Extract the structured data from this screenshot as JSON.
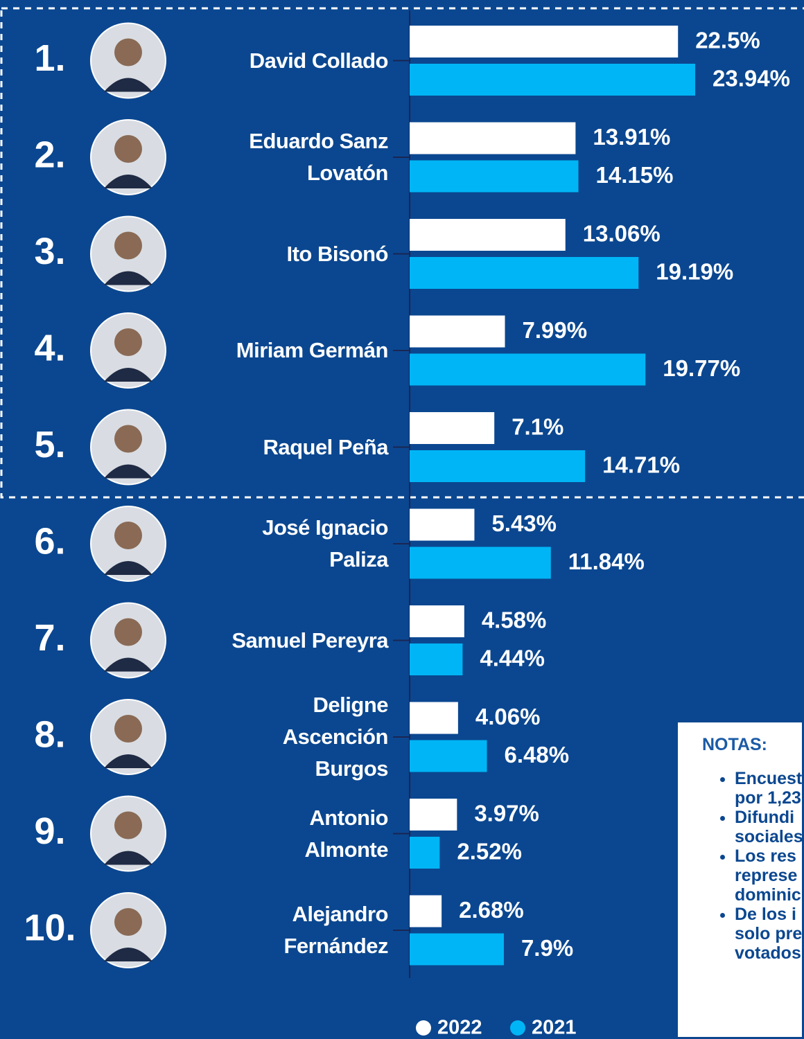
{
  "chart_data": {
    "type": "bar",
    "ranks": [
      "1.",
      "2.",
      "3.",
      "4.",
      "5.",
      "6.",
      "7.",
      "8.",
      "9.",
      "10."
    ],
    "categories": [
      "David Collado",
      "Eduardo Sanz\nLovatón",
      "Ito Bisonó",
      "Miriam Germán",
      "Raquel Peña",
      "José Ignacio\nPaliza",
      "Samuel Pereyra",
      "Deligne\nAscención\nBurgos",
      "Antonio\nAlmonte",
      "Alejandro\nFernández"
    ],
    "series": [
      {
        "name": "2022",
        "color": "#ffffff",
        "values": [
          22.5,
          13.91,
          13.06,
          7.99,
          7.1,
          5.43,
          4.58,
          4.06,
          3.97,
          2.68
        ],
        "value_labels": [
          "22.5%",
          "13.91%",
          "13.06%",
          "7.99%",
          "7.1%",
          "5.43%",
          "4.58%",
          "4.06%",
          "3.97%",
          "2.68%"
        ]
      },
      {
        "name": "2021",
        "color": "#00b5f5",
        "values": [
          23.94,
          14.15,
          19.19,
          19.77,
          14.71,
          11.84,
          4.44,
          6.48,
          2.52,
          7.9
        ],
        "value_labels": [
          "23.94%",
          "14.15%",
          "19.19%",
          "19.77%",
          "14.71%",
          "11.84%",
          "4.44%",
          "6.48%",
          "2.52%",
          "7.9%"
        ]
      }
    ]
  },
  "notes": {
    "title": "NOTAS:",
    "items": [
      [
        "Encuest",
        "por 1,23"
      ],
      [
        "Difundi",
        "sociales"
      ],
      [
        "Los res",
        "represe",
        "dominic"
      ],
      [
        "De los i",
        "solo pre",
        "votados"
      ]
    ]
  }
}
